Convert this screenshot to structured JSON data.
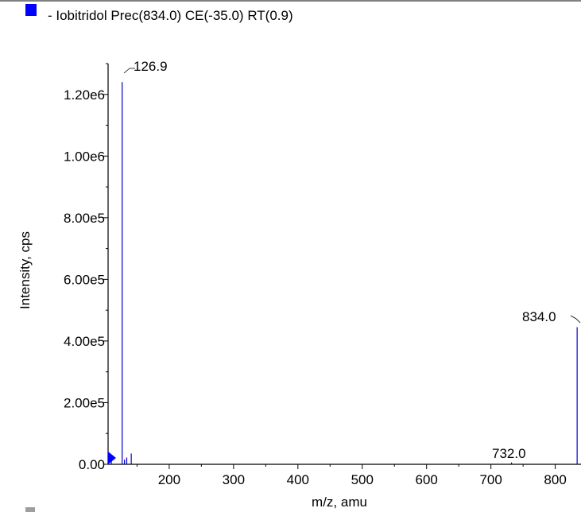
{
  "chart_data": {
    "type": "bar",
    "legend": {
      "label": "- Iobitridol Prec(834.0) CE(-35.0) RT(0.9)",
      "color": "#0000ff",
      "placement": "top-left"
    },
    "xlabel": "m/z, amu",
    "ylabel": "Intensity, cps",
    "xlim": [
      105,
      840
    ],
    "ylim": [
      0,
      1300000
    ],
    "xticks": [
      200,
      300,
      400,
      500,
      600,
      700,
      800
    ],
    "yticks": [
      0,
      200000,
      400000,
      600000,
      800000,
      1000000,
      1200000
    ],
    "ytick_labels": [
      "0.00",
      "2.00e5",
      "4.00e5",
      "6.00e5",
      "8.00e5",
      "1.00e6",
      "1.20e6"
    ],
    "peak_color": "#0000cc",
    "series": [
      {
        "peaks": [
          {
            "x": 110.0,
            "y": 18000
          },
          {
            "x": 126.9,
            "y": 1240000
          },
          {
            "x": 130.5,
            "y": 15000
          },
          {
            "x": 134.0,
            "y": 22000
          },
          {
            "x": 141.0,
            "y": 35000
          },
          {
            "x": 732.0,
            "y": 6000
          },
          {
            "x": 834.0,
            "y": 445000
          }
        ]
      }
    ],
    "annotations": [
      {
        "text": "126.9",
        "x": 126.9
      },
      {
        "text": "732.0",
        "x": 732.0
      },
      {
        "text": "834.0",
        "x": 834.0
      }
    ]
  }
}
